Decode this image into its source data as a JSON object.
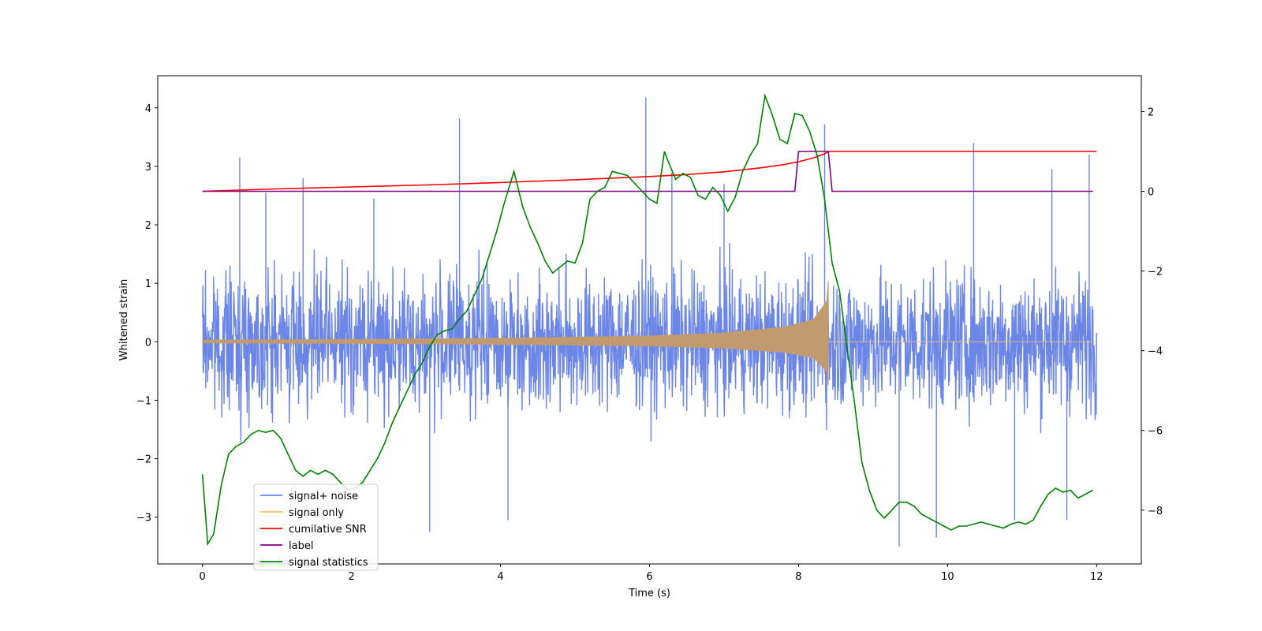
{
  "chart_data": {
    "type": "line",
    "xlabel": "Time (s)",
    "ylabel": "Whitened strain",
    "xlim": [
      -0.6,
      12.6
    ],
    "ylim": [
      -3.8,
      4.55
    ],
    "ylim_right": [
      -9.35,
      2.9
    ],
    "x_ticks": [
      0,
      2,
      4,
      6,
      8,
      10,
      12
    ],
    "y_ticks": [
      -3,
      -2,
      -1,
      0,
      1,
      2,
      3,
      4
    ],
    "y_ticks_right": [
      -8,
      -6,
      -4,
      -2,
      0,
      2
    ],
    "legend_position": "lower-left",
    "legend": [
      {
        "label": "signal+ noise",
        "color": "#6b86e6"
      },
      {
        "label": "signal only",
        "color": "#ffc060"
      },
      {
        "label": "cumilative SNR",
        "color": "#ff0000"
      },
      {
        "label": "label",
        "color": "#800080"
      },
      {
        "label": "signal statistics",
        "color": "#008000"
      }
    ],
    "series": [
      {
        "name": "signal+ noise",
        "axis": "left",
        "color": "#6b86e6",
        "style": "dense-noise",
        "x_range": [
          0,
          12
        ],
        "band": [
          -2.0,
          1.9
        ],
        "spikes": [
          {
            "x": 0.5,
            "y": 3.15
          },
          {
            "x": 1.35,
            "y": 2.8
          },
          {
            "x": 3.45,
            "y": 3.82
          },
          {
            "x": 5.95,
            "y": 4.18
          },
          {
            "x": 8.35,
            "y": 3.72
          },
          {
            "x": 10.35,
            "y": 3.4
          },
          {
            "x": 11.9,
            "y": 3.2
          },
          {
            "x": 3.05,
            "y": -3.25
          },
          {
            "x": 4.1,
            "y": -3.05
          },
          {
            "x": 9.35,
            "y": -3.5
          },
          {
            "x": 9.85,
            "y": -3.35
          },
          {
            "x": 0.85,
            "y": 2.55
          },
          {
            "x": 2.3,
            "y": 2.45
          },
          {
            "x": 6.3,
            "y": 2.9
          },
          {
            "x": 7.0,
            "y": 2.7
          },
          {
            "x": 11.4,
            "y": 2.95
          },
          {
            "x": 10.9,
            "y": -3.05
          },
          {
            "x": 11.6,
            "y": -3.05
          }
        ]
      },
      {
        "name": "signal only",
        "axis": "left",
        "color": "#c29a70",
        "style": "chirp",
        "x_range": [
          0,
          8.4
        ],
        "envelope_points": [
          [
            0,
            0.03
          ],
          [
            2,
            0.04
          ],
          [
            4,
            0.06
          ],
          [
            6,
            0.1
          ],
          [
            7,
            0.15
          ],
          [
            7.8,
            0.25
          ],
          [
            8.2,
            0.38
          ],
          [
            8.38,
            0.7
          ],
          [
            8.4,
            1.05
          ]
        ]
      },
      {
        "name": "cumilative SNR",
        "axis": "right",
        "color": "#ff0000",
        "x": [
          0,
          1,
          2,
          3,
          4,
          5,
          6,
          6.5,
          7,
          7.5,
          7.8,
          8.0,
          8.2,
          8.35,
          8.4,
          9,
          10,
          11,
          12
        ],
        "y": [
          0,
          0.06,
          0.11,
          0.16,
          0.22,
          0.29,
          0.37,
          0.42,
          0.49,
          0.59,
          0.67,
          0.74,
          0.84,
          0.94,
          1.0,
          1.0,
          1.0,
          1.0,
          1.0
        ]
      },
      {
        "name": "label",
        "axis": "right",
        "color": "#800080",
        "x": [
          0,
          7.95,
          8.0,
          8.4,
          8.45,
          11.95
        ],
        "y": [
          0,
          0,
          1,
          1,
          0,
          0
        ]
      },
      {
        "name": "signal statistics",
        "axis": "right",
        "color": "#008000",
        "x": [
          0,
          0.07,
          0.15,
          0.25,
          0.35,
          0.45,
          0.55,
          0.65,
          0.75,
          0.85,
          0.95,
          1.05,
          1.15,
          1.25,
          1.35,
          1.45,
          1.55,
          1.65,
          1.75,
          1.85,
          1.95,
          2.05,
          2.15,
          2.25,
          2.35,
          2.45,
          2.55,
          2.65,
          2.75,
          2.85,
          2.95,
          3.05,
          3.15,
          3.25,
          3.35,
          3.45,
          3.55,
          3.65,
          3.75,
          3.85,
          3.95,
          4.05,
          4.18,
          4.3,
          4.4,
          4.5,
          4.6,
          4.7,
          4.8,
          4.9,
          5.0,
          5.1,
          5.2,
          5.3,
          5.4,
          5.5,
          5.6,
          5.7,
          5.8,
          5.9,
          6.0,
          6.1,
          6.2,
          6.25,
          6.35,
          6.45,
          6.55,
          6.65,
          6.75,
          6.85,
          6.95,
          7.05,
          7.15,
          7.25,
          7.35,
          7.45,
          7.55,
          7.65,
          7.75,
          7.85,
          7.95,
          8.05,
          8.15,
          8.25,
          8.35,
          8.45,
          8.55,
          8.65,
          8.75,
          8.85,
          8.95,
          9.05,
          9.15,
          9.25,
          9.35,
          9.45,
          9.55,
          9.65,
          9.75,
          9.85,
          9.95,
          10.05,
          10.15,
          10.25,
          10.35,
          10.45,
          10.55,
          10.65,
          10.75,
          10.85,
          10.95,
          11.05,
          11.15,
          11.25,
          11.35,
          11.45,
          11.55,
          11.65,
          11.75,
          11.85,
          11.95
        ],
        "y": [
          -7.1,
          -8.85,
          -8.6,
          -7.4,
          -6.6,
          -6.4,
          -6.3,
          -6.1,
          -6.0,
          -6.05,
          -6.0,
          -6.2,
          -6.6,
          -7.0,
          -7.15,
          -7.0,
          -7.1,
          -7.0,
          -7.1,
          -7.3,
          -7.5,
          -7.45,
          -7.3,
          -7.0,
          -6.7,
          -6.3,
          -5.8,
          -5.4,
          -5.0,
          -4.6,
          -4.3,
          -3.9,
          -3.6,
          -3.5,
          -3.45,
          -3.2,
          -3.0,
          -2.6,
          -2.2,
          -1.6,
          -1.0,
          -0.3,
          0.5,
          -0.4,
          -0.9,
          -1.3,
          -1.75,
          -2.05,
          -1.9,
          -1.75,
          -1.8,
          -1.3,
          -0.2,
          0.0,
          0.1,
          0.5,
          0.45,
          0.4,
          0.2,
          0.0,
          -0.2,
          -0.3,
          1.0,
          0.75,
          0.3,
          0.45,
          0.35,
          -0.1,
          -0.2,
          0.1,
          -0.1,
          -0.5,
          -0.15,
          0.5,
          0.9,
          1.2,
          2.4,
          1.9,
          1.3,
          1.2,
          1.95,
          1.9,
          1.5,
          0.9,
          -0.2,
          -1.8,
          -2.5,
          -3.9,
          -5.3,
          -6.8,
          -7.5,
          -8.0,
          -8.2,
          -8.0,
          -7.8,
          -7.8,
          -7.9,
          -8.1,
          -8.2,
          -8.3,
          -8.4,
          -8.5,
          -8.4,
          -8.4,
          -8.35,
          -8.3,
          -8.35,
          -8.4,
          -8.45,
          -8.35,
          -8.3,
          -8.35,
          -8.25,
          -7.9,
          -7.6,
          -7.45,
          -7.55,
          -7.5,
          -7.7,
          -7.6,
          -7.5
        ]
      }
    ]
  }
}
